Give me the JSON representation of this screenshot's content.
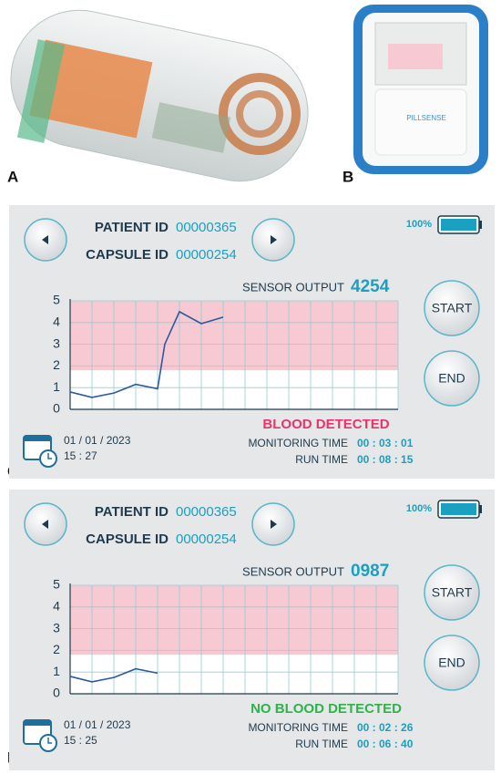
{
  "figure_labels": [
    "A",
    "B",
    "C",
    "D"
  ],
  "device_brand": "PILLSENSE",
  "panels": [
    {
      "patient_id_label": "PATIENT ID",
      "patient_id": "00000365",
      "capsule_id_label": "CAPSULE ID",
      "capsule_id": "00000254",
      "battery": "100%",
      "sensor_output_label": "SENSOR OUTPUT",
      "sensor_output": "4254",
      "start_button": "START",
      "end_button": "END",
      "status": "BLOOD DETECTED",
      "status_color": "#e8336b",
      "date": "01 / 01 / 2023",
      "time": "15 : 27",
      "monitoring_time_label": "MONITORING TIME",
      "monitoring_time": "00 : 03 : 01",
      "run_time_label": "RUN TIME",
      "run_time": "00 : 08 : 15"
    },
    {
      "patient_id_label": "PATIENT ID",
      "patient_id": "00000365",
      "capsule_id_label": "CAPSULE ID",
      "capsule_id": "00000254",
      "battery": "100%",
      "sensor_output_label": "SENSOR OUTPUT",
      "sensor_output": "0987",
      "start_button": "START",
      "end_button": "END",
      "status": "NO BLOOD DETECTED",
      "status_color": "#2db34a",
      "date": "01 / 01 / 2023",
      "time": "15 : 25",
      "monitoring_time_label": "MONITORING TIME",
      "monitoring_time": "00 : 02 : 26",
      "run_time_label": "RUN TIME",
      "run_time": "00 : 06 : 40"
    }
  ],
  "chart_data": [
    {
      "type": "line",
      "x": [
        0,
        1,
        2,
        3,
        4,
        4.33,
        5,
        6,
        7
      ],
      "values": [
        0.8,
        0.55,
        0.75,
        1.15,
        0.95,
        3.0,
        4.5,
        3.95,
        4.25
      ],
      "color": "#2c5aa0",
      "xlim": [
        0,
        15
      ],
      "xticks": [
        0,
        1,
        2,
        3,
        4,
        5,
        6,
        7,
        8,
        9,
        10,
        11,
        12,
        13,
        14,
        15
      ],
      "ylim": [
        0,
        5
      ],
      "yticks": [
        0,
        1,
        2,
        3,
        4,
        5
      ],
      "grid": true,
      "alert_band": [
        1.8,
        5
      ],
      "alert_color": "#f6c9d3"
    },
    {
      "type": "line",
      "x": [
        0,
        1,
        2,
        3,
        4
      ],
      "values": [
        0.8,
        0.55,
        0.75,
        1.15,
        0.95
      ],
      "color": "#2c5aa0",
      "xlim": [
        0,
        15
      ],
      "xticks": [
        0,
        1,
        2,
        3,
        4,
        5,
        6,
        7,
        8,
        9,
        10,
        11,
        12,
        13,
        14,
        15
      ],
      "ylim": [
        0,
        5
      ],
      "yticks": [
        0,
        1,
        2,
        3,
        4,
        5
      ],
      "grid": true,
      "alert_band": [
        1.8,
        5
      ],
      "alert_color": "#f6c9d3"
    }
  ]
}
